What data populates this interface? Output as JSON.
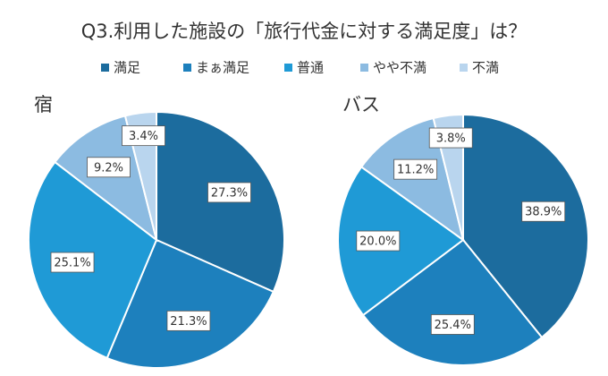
{
  "title": "Q3.利用した施設の「旅行代金に対する満足度」は？",
  "categories": [
    "満足",
    "まぁ満足",
    "普通",
    "やや不満",
    "不満"
  ],
  "colors": [
    "#1c6c9e",
    "#1d80bd",
    "#1f9ad6",
    "#8cbbe1",
    "#b9d5ee"
  ],
  "chart_data": [
    {
      "type": "pie",
      "title": "宿",
      "values": [
        27.3,
        21.3,
        25.1,
        9.2,
        3.4
      ],
      "value_labels": [
        "27.3%",
        "21.3%",
        "25.1%",
        "9.2%",
        "3.4%"
      ]
    },
    {
      "type": "pie",
      "title": "バス",
      "values": [
        38.9,
        25.4,
        20.0,
        11.2,
        3.8
      ],
      "value_labels": [
        "38.9%",
        "25.4%",
        "20.0%",
        "11.2%",
        "3.8%"
      ]
    }
  ]
}
